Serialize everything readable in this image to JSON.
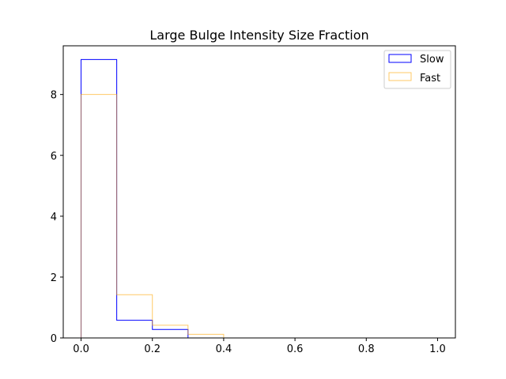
{
  "chart_data": {
    "type": "histogram",
    "title": "Large Bulge Intensity Size Fraction",
    "xlabel": "",
    "ylabel": "",
    "xlim": [
      -0.05,
      1.05
    ],
    "ylim": [
      0,
      9.6
    ],
    "x_ticks": [
      0.0,
      0.2,
      0.4,
      0.6,
      0.8,
      1.0
    ],
    "x_tick_labels": [
      "0.0",
      "0.2",
      "0.4",
      "0.6",
      "0.8",
      "1.0"
    ],
    "y_ticks": [
      0,
      2,
      4,
      6,
      8
    ],
    "y_tick_labels": [
      "0",
      "2",
      "4",
      "6",
      "8"
    ],
    "bin_edges": [
      0.0,
      0.1,
      0.2,
      0.3,
      0.4,
      0.5,
      0.6,
      0.7,
      0.8,
      0.9,
      1.0
    ],
    "series": [
      {
        "name": "Slow",
        "color": "#0000ff",
        "values": [
          9.15,
          0.58,
          0.28,
          0.0,
          0.0,
          0.0,
          0.0,
          0.0,
          0.0,
          0.0
        ]
      },
      {
        "name": "Fast",
        "color": "#ffa500",
        "opacity": 0.6,
        "values": [
          8.0,
          1.42,
          0.42,
          0.12,
          0.0,
          0.0,
          0.0,
          0.0,
          0.0,
          0.0
        ]
      }
    ],
    "legend": {
      "position": "top-right"
    },
    "grid": false
  }
}
